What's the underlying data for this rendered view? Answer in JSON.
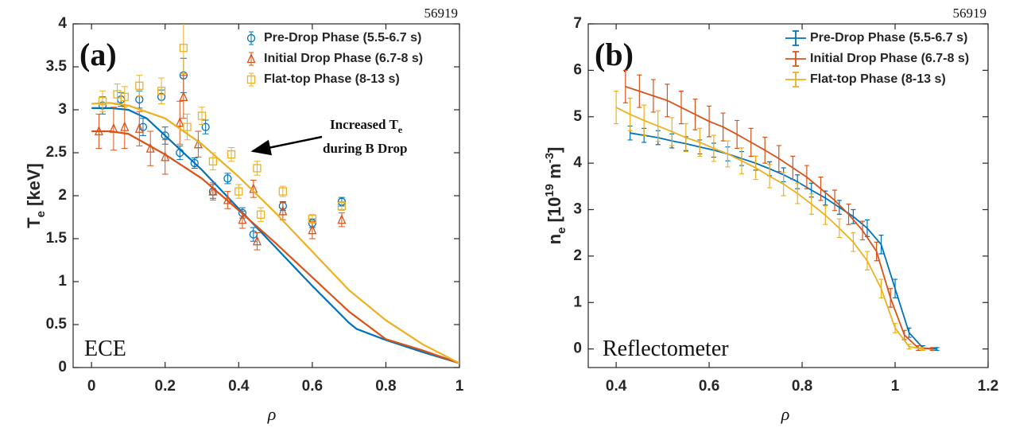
{
  "chart_data": [
    {
      "type": "errorbar",
      "panel_label": "(a)",
      "shot": "56919",
      "diagnostic": "ECE",
      "xlabel": "ρ",
      "ylabel": [
        "T",
        "e",
        " [keV]"
      ],
      "annotation": [
        "Increased T",
        "e",
        "during B Drop"
      ],
      "xlim": [
        -0.05,
        1.0
      ],
      "xticks": [
        0,
        0.2,
        0.4,
        0.6,
        0.8,
        1
      ],
      "ylim": [
        0,
        4
      ],
      "yticks": [
        0,
        0.5,
        1,
        1.5,
        2,
        2.5,
        3,
        3.5,
        4
      ],
      "legend": "upper right",
      "connect": false,
      "series": [
        {
          "name": "Pre-Drop Phase (5.5-6.7 s)",
          "color": "#0072BD",
          "marker": "circle",
          "x": [
            0.03,
            0.08,
            0.13,
            0.14,
            0.19,
            0.2,
            0.24,
            0.25,
            0.28,
            0.31,
            0.33,
            0.37,
            0.41,
            0.44,
            0.52,
            0.6,
            0.68
          ],
          "values": [
            3.05,
            3.12,
            3.12,
            2.8,
            3.15,
            2.7,
            2.5,
            3.4,
            2.38,
            2.8,
            2.05,
            2.2,
            1.8,
            1.55,
            1.88,
            1.68,
            1.93
          ],
          "errors": [
            0.1,
            0.08,
            0.1,
            0.1,
            0.08,
            0.1,
            0.08,
            0.2,
            0.06,
            0.08,
            0.08,
            0.06,
            0.06,
            0.08,
            0.05,
            0.05,
            0.05
          ],
          "fit": {
            "x": [
              0,
              0.05,
              0.1,
              0.15,
              0.2,
              0.3,
              0.4,
              0.5,
              0.6,
              0.7,
              0.72,
              0.8,
              0.9,
              1.0
            ],
            "values": [
              3.02,
              3.02,
              3.0,
              2.9,
              2.7,
              2.3,
              1.85,
              1.4,
              0.95,
              0.52,
              0.45,
              0.32,
              0.18,
              0.05
            ]
          }
        },
        {
          "name": "Initial Drop Phase (6.7-8 s)",
          "color": "#D95319",
          "marker": "triangle",
          "x": [
            0.02,
            0.06,
            0.09,
            0.13,
            0.16,
            0.2,
            0.24,
            0.25,
            0.29,
            0.33,
            0.37,
            0.41,
            0.44,
            0.45,
            0.52,
            0.6,
            0.68
          ],
          "values": [
            2.75,
            2.78,
            2.8,
            2.78,
            2.55,
            2.45,
            2.85,
            3.15,
            2.6,
            2.05,
            1.95,
            1.72,
            2.08,
            1.47,
            1.82,
            1.6,
            1.72
          ],
          "errors": [
            0.2,
            0.25,
            0.25,
            0.2,
            0.2,
            0.2,
            0.25,
            0.25,
            0.15,
            0.1,
            0.1,
            0.1,
            0.1,
            0.1,
            0.1,
            0.1,
            0.08
          ],
          "fit": {
            "x": [
              0,
              0.05,
              0.1,
              0.2,
              0.3,
              0.4,
              0.5,
              0.6,
              0.7,
              0.8,
              0.9,
              1.0
            ],
            "values": [
              2.75,
              2.75,
              2.72,
              2.48,
              2.2,
              1.83,
              1.45,
              1.05,
              0.65,
              0.33,
              0.2,
              0.05
            ]
          }
        },
        {
          "name": "Flat-top Phase (8-13 s)",
          "color": "#EDB120",
          "marker": "square",
          "x": [
            0.03,
            0.07,
            0.09,
            0.13,
            0.19,
            0.25,
            0.26,
            0.3,
            0.33,
            0.38,
            0.4,
            0.45,
            0.46,
            0.52,
            0.6,
            0.68
          ],
          "values": [
            3.1,
            3.18,
            3.15,
            3.28,
            3.22,
            3.72,
            2.8,
            2.93,
            2.4,
            2.48,
            2.05,
            2.32,
            1.78,
            2.05,
            1.73,
            1.88
          ],
          "errors": [
            0.12,
            0.12,
            0.12,
            0.12,
            0.15,
            0.3,
            0.15,
            0.1,
            0.1,
            0.08,
            0.08,
            0.08,
            0.08,
            0.06,
            0.05,
            0.05
          ],
          "fit": {
            "x": [
              0,
              0.05,
              0.1,
              0.2,
              0.3,
              0.4,
              0.5,
              0.6,
              0.7,
              0.8,
              0.9,
              1.0
            ],
            "values": [
              3.07,
              3.08,
              3.05,
              2.9,
              2.6,
              2.22,
              1.8,
              1.35,
              0.9,
              0.55,
              0.27,
              0.05
            ]
          }
        }
      ]
    },
    {
      "type": "errorbar",
      "panel_label": "(b)",
      "shot": "56919",
      "diagnostic": "Reflectometer",
      "xlabel": "ρ",
      "ylabel": [
        "n",
        "e",
        " [10",
        "19",
        " m",
        "-3",
        "]"
      ],
      "xlim": [
        0.34,
        1.2
      ],
      "xticks": [
        0.4,
        0.6,
        0.8,
        1,
        1.2
      ],
      "ylim": [
        -0.4,
        7
      ],
      "yticks": [
        0,
        1,
        2,
        3,
        4,
        5,
        6,
        7
      ],
      "legend": "upper right",
      "connect": true,
      "series": [
        {
          "name": "Pre-Drop Phase (5.5-6.7 s)",
          "color": "#0072BD",
          "x": [
            0.43,
            0.46,
            0.49,
            0.52,
            0.55,
            0.58,
            0.61,
            0.64,
            0.67,
            0.7,
            0.73,
            0.76,
            0.79,
            0.82,
            0.85,
            0.88,
            0.91,
            0.94,
            0.97,
            1.0,
            1.03,
            1.06,
            1.09
          ],
          "values": [
            4.65,
            4.6,
            4.55,
            4.48,
            4.42,
            4.35,
            4.28,
            4.2,
            4.1,
            4.0,
            3.88,
            3.75,
            3.6,
            3.42,
            3.25,
            3.05,
            2.85,
            2.6,
            2.25,
            1.3,
            0.35,
            0.02,
            0.0
          ],
          "errors": [
            0.15,
            0.15,
            0.15,
            0.15,
            0.15,
            0.15,
            0.15,
            0.15,
            0.15,
            0.15,
            0.15,
            0.15,
            0.15,
            0.15,
            0.15,
            0.15,
            0.15,
            0.18,
            0.2,
            0.2,
            0.1,
            0.05,
            0.03
          ]
        },
        {
          "name": "Initial Drop Phase (6.7-8 s)",
          "color": "#D95319",
          "x": [
            0.42,
            0.45,
            0.48,
            0.51,
            0.54,
            0.57,
            0.6,
            0.63,
            0.66,
            0.69,
            0.72,
            0.75,
            0.78,
            0.81,
            0.84,
            0.87,
            0.9,
            0.93,
            0.96,
            0.99,
            1.02,
            1.05,
            1.08
          ],
          "values": [
            5.65,
            5.55,
            5.45,
            5.35,
            5.2,
            5.05,
            4.9,
            4.78,
            4.62,
            4.45,
            4.28,
            4.1,
            3.9,
            3.7,
            3.45,
            3.2,
            2.9,
            2.55,
            2.1,
            1.1,
            0.3,
            0.02,
            0.0
          ],
          "errors": [
            0.35,
            0.35,
            0.35,
            0.35,
            0.35,
            0.33,
            0.33,
            0.3,
            0.3,
            0.3,
            0.28,
            0.28,
            0.25,
            0.25,
            0.25,
            0.22,
            0.22,
            0.2,
            0.2,
            0.2,
            0.1,
            0.05,
            0.03
          ]
        },
        {
          "name": "Flat-top Phase (8-13 s)",
          "color": "#EDB120",
          "x": [
            0.4,
            0.43,
            0.46,
            0.49,
            0.52,
            0.55,
            0.58,
            0.61,
            0.64,
            0.67,
            0.7,
            0.73,
            0.76,
            0.79,
            0.82,
            0.85,
            0.88,
            0.91,
            0.94,
            0.97,
            1.0,
            1.03,
            1.06
          ],
          "values": [
            5.2,
            5.05,
            4.92,
            4.8,
            4.68,
            4.55,
            4.45,
            4.32,
            4.2,
            4.05,
            3.9,
            3.72,
            3.55,
            3.35,
            3.12,
            2.88,
            2.6,
            2.3,
            1.9,
            1.3,
            0.45,
            0.05,
            0.0
          ],
          "errors": [
            0.35,
            0.35,
            0.33,
            0.33,
            0.3,
            0.3,
            0.3,
            0.28,
            0.28,
            0.28,
            0.25,
            0.25,
            0.25,
            0.22,
            0.22,
            0.2,
            0.2,
            0.2,
            0.2,
            0.2,
            0.1,
            0.05,
            0.03
          ]
        }
      ]
    }
  ]
}
